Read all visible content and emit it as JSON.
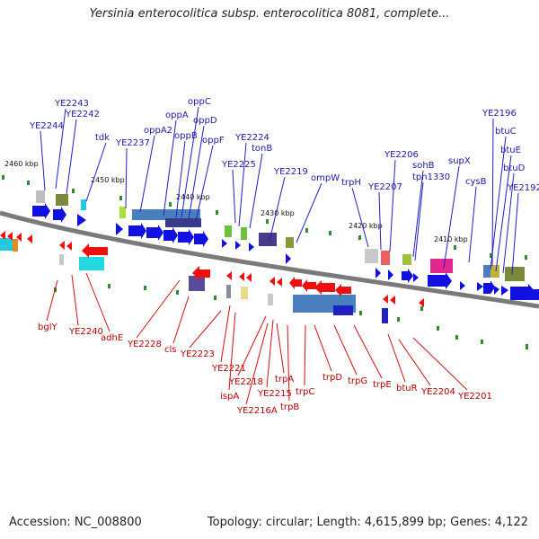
{
  "title": "Yersinia enterocolitica subsp. enterocolitica 8081, complete...",
  "accession": "Accession: NC_008800",
  "summary": "Topology: circular; Length: 4,615,899 bp; Genes: 4,122",
  "colors": {
    "forward_label": "#1a1aa6",
    "reverse_label": "#b30000",
    "forward_arrow": "#1010e0",
    "reverse_arrow": "#ee1010",
    "backbone": "#7a7a7a",
    "tick": "#2e8b2e"
  },
  "scale_labels": [
    "2460 kbp",
    "2450 kbp",
    "2440 kbp",
    "2430 kbp",
    "2420 kbp",
    "2410 kbp"
  ],
  "forward_genes": [
    "YE2244",
    "YE2243",
    "YE2242",
    "tdk",
    "YE2237",
    "oppA2",
    "oppA",
    "oppB",
    "oppC",
    "oppD",
    "oppF",
    "YE2225",
    "YE2224",
    "tonB",
    "YE2219",
    "ompW",
    "trpH",
    "YE2207",
    "YE2206",
    "sohB",
    "tpn1330",
    "supX",
    "cysB",
    "YE2196",
    "btuC",
    "btuE",
    "btuD",
    "YE2192"
  ],
  "reverse_genes": [
    "bglY",
    "YE2240",
    "adhE",
    "YE2228",
    "cls",
    "YE2223",
    "YE2221",
    "ispA",
    "YE2218",
    "YE2216A",
    "YE2215",
    "trpA",
    "trpB",
    "trpC",
    "trpD",
    "trpG",
    "trpE",
    "btuR",
    "YE2204",
    "YE2201"
  ]
}
